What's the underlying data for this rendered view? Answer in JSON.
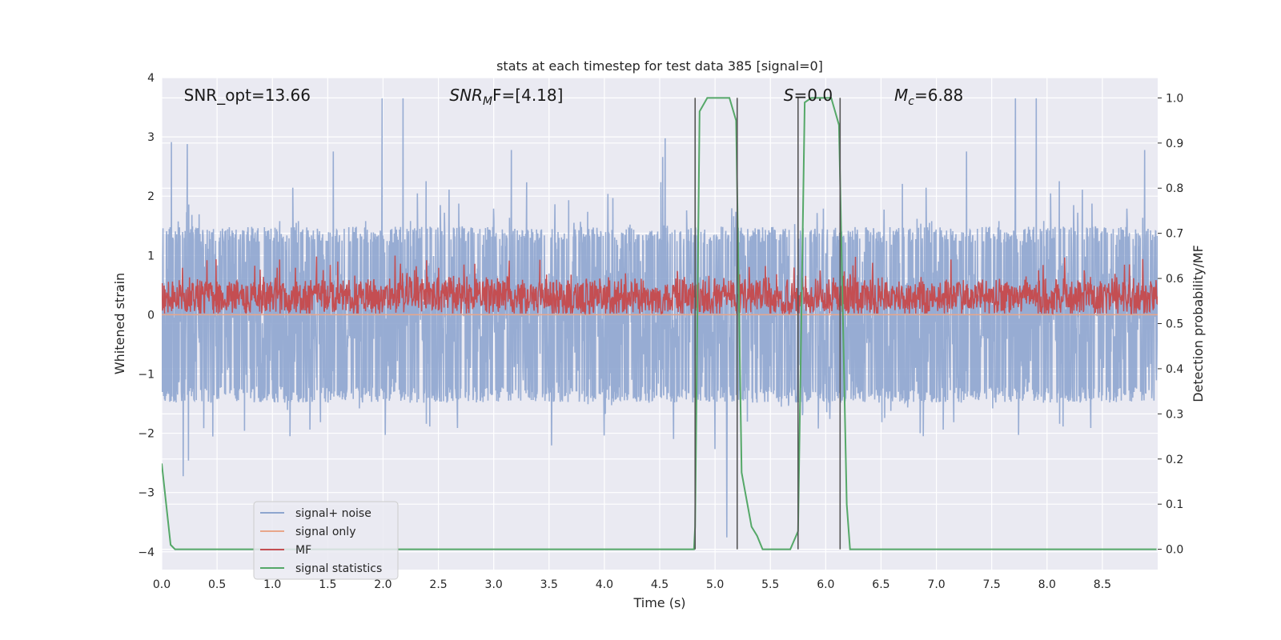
{
  "chart_data": {
    "type": "line",
    "title": "stats at each timestep for test data 385 [signal=0]",
    "xlabel": "Time (s)",
    "ylabel": "Whitened strain",
    "y2label": "Detection probability/MF",
    "xlim": [
      0,
      9
    ],
    "ylim": [
      -4.3,
      4.0
    ],
    "y2lim": [
      -0.045,
      1.045
    ],
    "xticks": [
      0.0,
      0.5,
      1.0,
      1.5,
      2.0,
      2.5,
      3.0,
      3.5,
      4.0,
      4.5,
      5.0,
      5.5,
      6.0,
      6.5,
      7.0,
      7.5,
      8.0,
      8.5
    ],
    "xtick_labels": [
      "0.0",
      "0.5",
      "1.0",
      "1.5",
      "2.0",
      "2.5",
      "3.0",
      "3.5",
      "4.0",
      "4.5",
      "5.0",
      "5.5",
      "6.0",
      "6.5",
      "7.0",
      "7.5",
      "8.0",
      "8.5"
    ],
    "yticks": [
      -4,
      -3,
      -2,
      -1,
      0,
      1,
      2,
      3,
      4
    ],
    "ytick_labels": [
      "−4",
      "−3",
      "−2",
      "−1",
      "0",
      "1",
      "2",
      "3",
      "4"
    ],
    "y2ticks": [
      0.0,
      0.1,
      0.2,
      0.3,
      0.4,
      0.5,
      0.6,
      0.7,
      0.8,
      0.9,
      1.0
    ],
    "y2tick_labels": [
      "0.0",
      "0.1",
      "0.2",
      "0.3",
      "0.4",
      "0.5",
      "0.6",
      "0.7",
      "0.8",
      "0.9",
      "1.0"
    ],
    "grid": true,
    "legend_position": "lower-left",
    "annotations": [
      {
        "text": "SNR_opt=13.66",
        "x": 0.2,
        "y": 3.7
      },
      {
        "text_main": "SNR",
        "text_sub": "M",
        "text_after": "F=[4.18]",
        "x": 2.6,
        "y": 3.7
      },
      {
        "text_main": "S",
        "text_sub": "",
        "text_after": "=0.0",
        "x": 5.62,
        "y": 3.7
      },
      {
        "text_main": "M",
        "text_sub": "c",
        "text_after": "=6.88",
        "x": 6.62,
        "y": 3.7
      }
    ],
    "vertical_lines": [
      4.82,
      5.2,
      5.75,
      6.13
    ],
    "series": [
      {
        "name": "signal+ noise",
        "color": "#8ea5cf",
        "kind": "noise",
        "axis": "left",
        "envelope": 1.8,
        "core": 1.35,
        "points": 3200
      },
      {
        "name": "signal only",
        "color": "#e8a68a",
        "kind": "flat",
        "axis": "left",
        "x": [
          0,
          9
        ],
        "y": [
          0.0,
          0.0
        ]
      },
      {
        "name": "MF",
        "color": "#c44e52",
        "kind": "mf",
        "axis": "left",
        "center": 0.3,
        "points": 2400
      },
      {
        "name": "signal statistics",
        "color": "#55a868",
        "kind": "line",
        "axis": "right",
        "x": [
          0.0,
          0.08,
          0.12,
          4.81,
          4.82,
          4.86,
          4.93,
          5.13,
          5.19,
          5.24,
          5.33,
          5.38,
          5.43,
          5.49,
          5.68,
          5.75,
          5.81,
          5.87,
          6.05,
          6.12,
          6.19,
          6.22,
          8.99
        ],
        "y": [
          0.19,
          0.01,
          0.0,
          0.0,
          0.05,
          0.97,
          1.0,
          1.0,
          0.95,
          0.17,
          0.05,
          0.03,
          0.0,
          0.0,
          0.0,
          0.04,
          0.99,
          1.0,
          1.0,
          0.94,
          0.1,
          0.0,
          0.0
        ]
      }
    ]
  }
}
